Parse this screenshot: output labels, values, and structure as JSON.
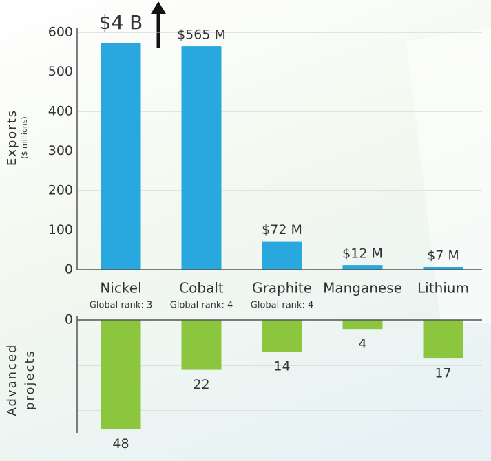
{
  "chart_data": [
    {
      "type": "bar",
      "ylabel": "Exports",
      "ylabel_sub": "($ millions)",
      "categories": [
        "Nickel",
        "Cobalt",
        "Graphite",
        "Manganese",
        "Lithium"
      ],
      "sublabels": [
        "Global rank: 3",
        "Global rank: 4",
        "Global rank: 4",
        null,
        null
      ],
      "values": [
        4000,
        565,
        72,
        12,
        7
      ],
      "value_labels": [
        "$4 B",
        "$565 M",
        "$72 M",
        "$12 M",
        "$7 M"
      ],
      "color": "#29a8e0",
      "ylim": [
        0,
        600
      ],
      "yticks": [
        0,
        100,
        200,
        300,
        400,
        500,
        600
      ],
      "grid": true
    },
    {
      "type": "bar",
      "ylabel": "Advanced",
      "ylabel_sub": "projects",
      "values": [
        48,
        22,
        14,
        4,
        17
      ],
      "color": "#8cc63f",
      "inverted": true,
      "ylim": [
        0,
        50
      ],
      "yticks": [
        0
      ],
      "minor_yticks": [
        20,
        40
      ],
      "grid": true
    }
  ]
}
